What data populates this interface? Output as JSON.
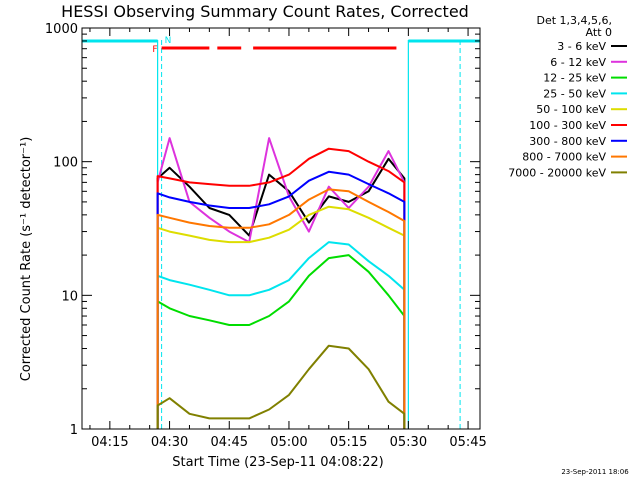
{
  "chart_data": {
    "type": "line",
    "title": "HESSI Observing Summary Count Rates, Corrected",
    "xlabel": "Start Time (23-Sep-11 04:08:22)",
    "ylabel": "Corrected Count Rate (s⁻¹ detector⁻¹)",
    "yscale": "log",
    "ylim": [
      1,
      1000
    ],
    "xlim_minutes": [
      "04:08",
      "05:48"
    ],
    "x_ticks": [
      "04:15",
      "04:30",
      "04:45",
      "05:00",
      "05:15",
      "05:30",
      "05:45"
    ],
    "y_ticks": [
      "1",
      "10",
      "100",
      "1000"
    ],
    "grid": false,
    "legend_header": [
      "Det 1,3,4,5,6,",
      "Att 0"
    ],
    "legend_placement": "right-outside",
    "footer": "23-Sep-2011 18:06",
    "annotations": {
      "flags": [
        {
          "label": "F",
          "color": "#ff0000"
        },
        {
          "label": "N",
          "color": "#00e5ee"
        }
      ],
      "night_intervals": [
        [
          "04:08",
          "04:27"
        ],
        [
          "05:30",
          "05:48"
        ]
      ],
      "dashed_lines": [
        "04:28",
        "05:43"
      ],
      "flare_flag_segments": [
        [
          "04:28",
          "04:40"
        ],
        [
          "04:42",
          "04:48"
        ],
        [
          "04:51",
          "05:27"
        ]
      ]
    },
    "x": [
      "04:27",
      "04:30",
      "04:35",
      "04:40",
      "04:45",
      "04:50",
      "04:55",
      "05:00",
      "05:05",
      "05:10",
      "05:15",
      "05:20",
      "05:25",
      "05:29"
    ],
    "series": [
      {
        "name": "3 - 6 keV",
        "color": "#000000",
        "values": [
          75,
          90,
          65,
          45,
          40,
          28,
          80,
          60,
          35,
          55,
          50,
          60,
          105,
          75
        ]
      },
      {
        "name": "6 - 12 keV",
        "color": "#dd33dd",
        "values": [
          70,
          150,
          50,
          38,
          30,
          25,
          150,
          55,
          30,
          65,
          45,
          65,
          120,
          70
        ]
      },
      {
        "name": "12 - 25 keV",
        "color": "#00dd00",
        "values": [
          9,
          8,
          7,
          6.5,
          6,
          6,
          7,
          9,
          14,
          19,
          20,
          15,
          10,
          7
        ]
      },
      {
        "name": "25 - 50 keV",
        "color": "#00e5ee",
        "values": [
          14,
          13,
          12,
          11,
          10,
          10,
          11,
          13,
          19,
          25,
          24,
          18,
          14,
          11
        ]
      },
      {
        "name": "50 - 100 keV",
        "color": "#dddd00",
        "values": [
          32,
          30,
          28,
          26,
          25,
          25,
          27,
          31,
          40,
          46,
          44,
          38,
          32,
          28
        ]
      },
      {
        "name": "100 - 300 keV",
        "color": "#ff0000",
        "values": [
          78,
          75,
          70,
          68,
          66,
          66,
          70,
          80,
          105,
          125,
          120,
          100,
          85,
          70
        ]
      },
      {
        "name": "300 - 800 keV",
        "color": "#0000ff",
        "values": [
          58,
          54,
          50,
          47,
          45,
          45,
          48,
          55,
          72,
          84,
          80,
          68,
          58,
          50
        ]
      },
      {
        "name": "800 - 7000 keV",
        "color": "#ff7700",
        "values": [
          40,
          38,
          35,
          33,
          32,
          32,
          34,
          40,
          52,
          62,
          60,
          50,
          42,
          36
        ]
      },
      {
        "name": "7000 - 20000 keV",
        "color": "#808000",
        "values": [
          1.5,
          1.7,
          1.3,
          1.2,
          1.2,
          1.2,
          1.4,
          1.8,
          2.8,
          4.2,
          4.0,
          2.8,
          1.6,
          1.3
        ]
      }
    ]
  }
}
